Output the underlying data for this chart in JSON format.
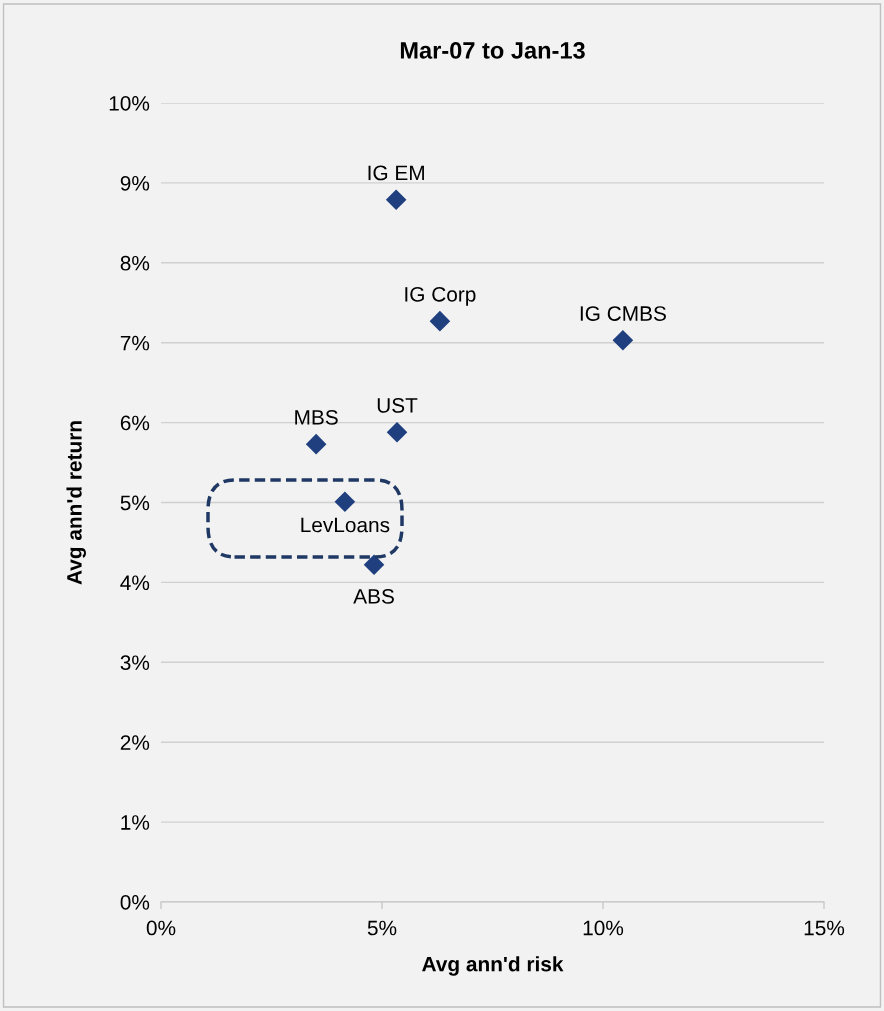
{
  "chart_data": {
    "type": "scatter",
    "title": "Mar-07 to Jan-13",
    "xlabel": "Avg ann'd risk",
    "ylabel": "Avg ann'd return",
    "series": [
      {
        "name": "IG EM",
        "color": "#1f3f7f",
        "x": [
          5.32
        ],
        "values": [
          8.79
        ]
      },
      {
        "name": "IG Corp",
        "color": "#1f3f7f",
        "x": [
          6.31
        ],
        "values": [
          7.27
        ]
      },
      {
        "name": "IG CMBS",
        "color": "#1f3f7f",
        "x": [
          10.45
        ],
        "values": [
          7.03
        ]
      },
      {
        "name": "MBS",
        "color": "#1f3f7f",
        "x": [
          3.51
        ],
        "values": [
          5.73
        ]
      },
      {
        "name": "UST",
        "color": "#1f3f7f",
        "x": [
          5.34
        ],
        "values": [
          5.88
        ]
      },
      {
        "name": "LevLoans",
        "color": "#1f3f7f",
        "x": [
          4.16
        ],
        "values": [
          5.01
        ]
      },
      {
        "name": "ABS",
        "color": "#1f3f7f",
        "x": [
          4.82
        ],
        "values": [
          4.22
        ]
      }
    ],
    "xlim": [
      0,
      15
    ],
    "xticks": [
      {
        "value": 0,
        "label": "0%"
      },
      {
        "value": 5,
        "label": "5%"
      },
      {
        "value": 10,
        "label": "10%"
      },
      {
        "value": 15,
        "label": "15%"
      }
    ],
    "ylim": [
      0,
      10
    ],
    "yticks": [
      {
        "value": 0,
        "label": "0%"
      },
      {
        "value": 1,
        "label": "1%"
      },
      {
        "value": 2,
        "label": "2%"
      },
      {
        "value": 3,
        "label": "3%"
      },
      {
        "value": 4,
        "label": "4%"
      },
      {
        "value": 5,
        "label": "5%"
      },
      {
        "value": 6,
        "label": "6%"
      },
      {
        "value": 7,
        "label": "7%"
      },
      {
        "value": 8,
        "label": "8%"
      },
      {
        "value": 9,
        "label": "9%"
      },
      {
        "value": 10,
        "label": "10%"
      }
    ],
    "grid": "y",
    "marker": "diamond",
    "legend": false
  }
}
